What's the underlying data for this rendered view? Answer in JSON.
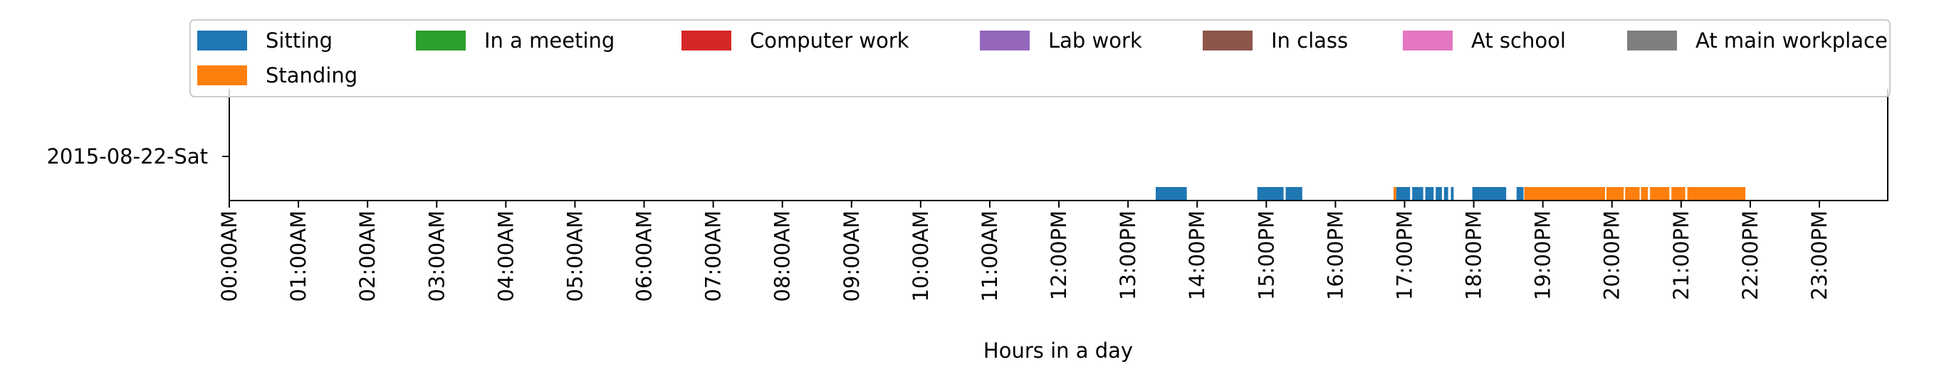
{
  "chart_data": {
    "type": "timeline",
    "ylabel_category": "2015-08-22-Sat",
    "xlabel": "Hours in a day",
    "x_unit": "hours",
    "xlim": [
      0,
      24
    ],
    "x_ticks": [
      0,
      1,
      2,
      3,
      4,
      5,
      6,
      7,
      8,
      9,
      10,
      11,
      12,
      13,
      14,
      15,
      16,
      17,
      18,
      19,
      20,
      21,
      22,
      23
    ],
    "x_tick_labels": [
      "00:00AM",
      "01:00AM",
      "02:00AM",
      "03:00AM",
      "04:00AM",
      "05:00AM",
      "06:00AM",
      "07:00AM",
      "08:00AM",
      "09:00AM",
      "10:00AM",
      "11:00AM",
      "12:00PM",
      "13:00PM",
      "14:00PM",
      "15:00PM",
      "16:00PM",
      "17:00PM",
      "18:00PM",
      "19:00PM",
      "20:00PM",
      "21:00PM",
      "22:00PM",
      "23:00PM"
    ],
    "legend_position": "top",
    "legend": [
      {
        "name": "Sitting",
        "color": "#1f77b4"
      },
      {
        "name": "In a meeting",
        "color": "#2ca02c"
      },
      {
        "name": "Computer work",
        "color": "#d62728"
      },
      {
        "name": "Lab work",
        "color": "#9467bd"
      },
      {
        "name": "In class",
        "color": "#8c564b"
      },
      {
        "name": "At school",
        "color": "#e377c2"
      },
      {
        "name": "At main workplace",
        "color": "#7f7f7f"
      },
      {
        "name": "Standing",
        "color": "#ff7f0e"
      }
    ],
    "series": [
      {
        "name": "Sitting",
        "color": "#1f77b4",
        "intervals": [
          [
            13.4,
            13.85
          ],
          [
            14.87,
            15.25
          ],
          [
            15.28,
            15.52
          ],
          [
            16.88,
            17.08
          ],
          [
            17.11,
            17.27
          ],
          [
            17.3,
            17.42
          ],
          [
            17.45,
            17.54
          ],
          [
            17.57,
            17.63
          ],
          [
            17.67,
            17.71
          ],
          [
            17.98,
            18.47
          ],
          [
            18.62,
            18.72
          ]
        ]
      },
      {
        "name": "Standing",
        "color": "#ff7f0e",
        "intervals": [
          [
            16.84,
            16.88
          ],
          [
            18.73,
            19.9
          ],
          [
            19.92,
            20.17
          ],
          [
            20.19,
            20.4
          ],
          [
            20.42,
            20.52
          ],
          [
            20.55,
            20.83
          ],
          [
            20.86,
            21.06
          ],
          [
            21.09,
            21.93
          ]
        ]
      }
    ]
  }
}
